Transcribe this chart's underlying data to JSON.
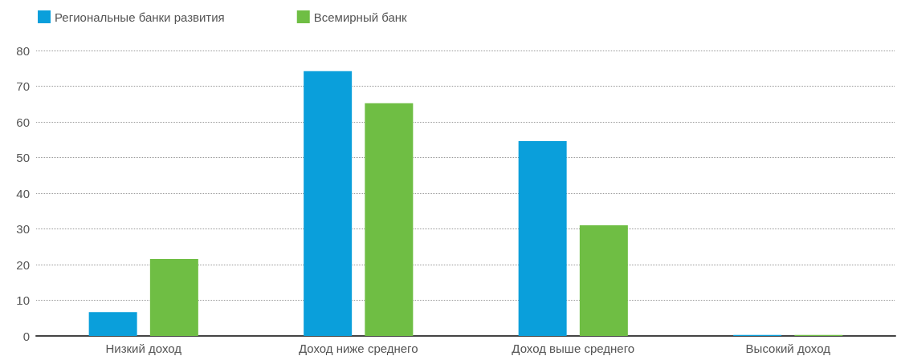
{
  "chart_data": {
    "type": "bar",
    "categories": [
      "Низкий доход",
      "Доход ниже среднего",
      "Доход выше среднего",
      "Высокий доход"
    ],
    "series": [
      {
        "name": "Региональные банки развития",
        "color": "#0a9fdb",
        "values": [
          6.7,
          74.2,
          54.6,
          0.3
        ]
      },
      {
        "name": "Всемирный банк",
        "color": "#6fbe44",
        "values": [
          21.6,
          65.2,
          31.0,
          0.3
        ]
      }
    ],
    "ylim": [
      0,
      80
    ],
    "yticks": [
      0,
      10,
      20,
      30,
      40,
      50,
      60,
      70,
      80
    ],
    "grid": "y",
    "legend": "top left"
  }
}
